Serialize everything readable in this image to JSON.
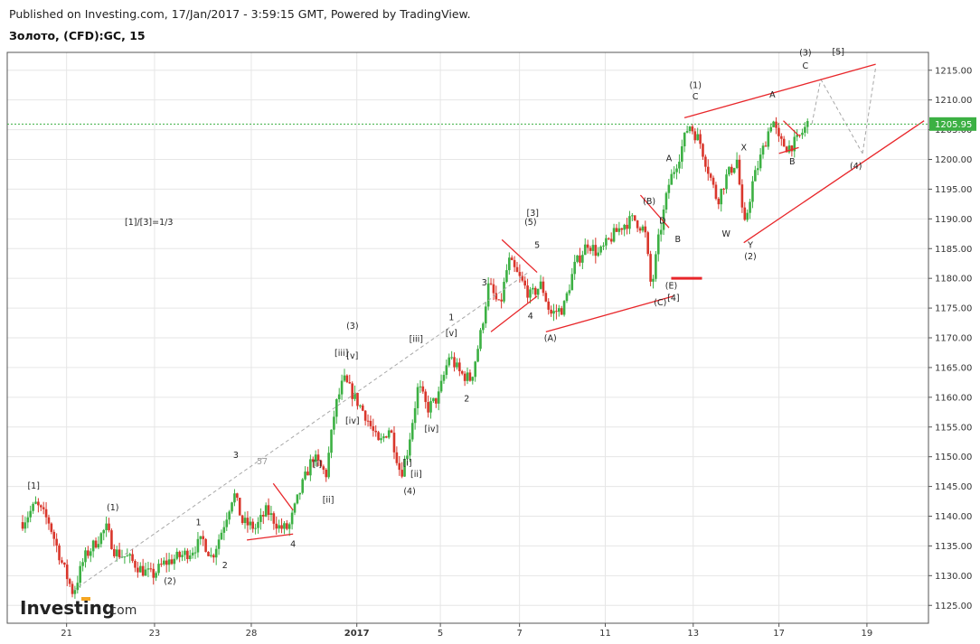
{
  "header": {
    "published": "Published on Investing.com, 17/Jan/2017 - 3:59:15 GMT, Powered by TradingView.",
    "symbol": "Золото, (CFD):GC, 15"
  },
  "logo": {
    "word": "Investing",
    "suffix": ".com"
  },
  "colors": {
    "up": "#3cb043",
    "down": "#d9362b",
    "trendline": "#e8262a",
    "grid": "#e6e6e6",
    "last_price_line": "#3cb043"
  },
  "ratio_label": "[1]/[3]=1/3",
  "fib_label": "57",
  "chart_data": {
    "type": "candlestick",
    "last_price": "1205.95",
    "ylim": [
      1122,
      1218
    ],
    "y_ticks": [
      "1215.00",
      "1210.00",
      "1205.00",
      "1200.00",
      "1195.00",
      "1190.00",
      "1185.00",
      "1180.00",
      "1175.00",
      "1170.00",
      "1165.00",
      "1160.00",
      "1155.00",
      "1150.00",
      "1145.00",
      "1140.00",
      "1135.00",
      "1130.00",
      "1125.00"
    ],
    "x_ticks": [
      {
        "label": "21",
        "pos": 1.0
      },
      {
        "label": "23",
        "pos": 3.0
      },
      {
        "label": "28",
        "pos": 5.2
      },
      {
        "label": "2017",
        "pos": 7.6
      },
      {
        "label": "5",
        "pos": 9.5
      },
      {
        "label": "7",
        "pos": 11.3
      },
      {
        "label": "11",
        "pos": 13.25
      },
      {
        "label": "13",
        "pos": 15.25
      },
      {
        "label": "17",
        "pos": 17.2
      },
      {
        "label": "19",
        "pos": 19.2
      }
    ],
    "xlim": [
      -0.35,
      20.6
    ],
    "price_path": [
      [
        0.0,
        1139
      ],
      [
        0.3,
        1142
      ],
      [
        0.6,
        1139
      ],
      [
        0.9,
        1132
      ],
      [
        1.15,
        1127
      ],
      [
        1.4,
        1133
      ],
      [
        1.7,
        1136
      ],
      [
        1.9,
        1138
      ],
      [
        2.1,
        1134
      ],
      [
        2.4,
        1133
      ],
      [
        2.7,
        1131
      ],
      [
        2.95,
        1130
      ],
      [
        3.2,
        1132
      ],
      [
        3.5,
        1133
      ],
      [
        3.8,
        1134
      ],
      [
        4.1,
        1136
      ],
      [
        4.3,
        1133
      ],
      [
        4.55,
        1138
      ],
      [
        4.8,
        1144
      ],
      [
        5.0,
        1139
      ],
      [
        5.3,
        1138
      ],
      [
        5.55,
        1141
      ],
      [
        5.85,
        1138
      ],
      [
        6.05,
        1138
      ],
      [
        6.3,
        1144
      ],
      [
        6.6,
        1150
      ],
      [
        6.9,
        1147
      ],
      [
        7.1,
        1158
      ],
      [
        7.3,
        1163
      ],
      [
        7.55,
        1160
      ],
      [
        7.8,
        1157
      ],
      [
        8.1,
        1152
      ],
      [
        8.35,
        1155
      ],
      [
        8.6,
        1147
      ],
      [
        8.75,
        1151
      ],
      [
        9.0,
        1162
      ],
      [
        9.2,
        1158
      ],
      [
        9.45,
        1160
      ],
      [
        9.7,
        1167
      ],
      [
        9.95,
        1164
      ],
      [
        10.2,
        1163
      ],
      [
        10.4,
        1170
      ],
      [
        10.6,
        1179
      ],
      [
        10.85,
        1175
      ],
      [
        11.05,
        1183
      ],
      [
        11.3,
        1180
      ],
      [
        11.55,
        1177
      ],
      [
        11.8,
        1179
      ],
      [
        12.0,
        1174
      ],
      [
        12.3,
        1175
      ],
      [
        12.55,
        1182
      ],
      [
        12.85,
        1186
      ],
      [
        13.1,
        1184
      ],
      [
        13.4,
        1187
      ],
      [
        13.65,
        1189
      ],
      [
        13.9,
        1190
      ],
      [
        14.15,
        1188
      ],
      [
        14.3,
        1178
      ],
      [
        14.45,
        1186
      ],
      [
        14.7,
        1196
      ],
      [
        14.95,
        1201
      ],
      [
        15.15,
        1206
      ],
      [
        15.4,
        1203
      ],
      [
        15.6,
        1198
      ],
      [
        15.8,
        1193
      ],
      [
        16.0,
        1197
      ],
      [
        16.25,
        1200
      ],
      [
        16.4,
        1188
      ],
      [
        16.6,
        1196
      ],
      [
        16.85,
        1202
      ],
      [
        17.05,
        1207
      ],
      [
        17.2,
        1203
      ],
      [
        17.4,
        1202
      ],
      [
        17.6,
        1203
      ],
      [
        17.85,
        1205.95
      ]
    ]
  },
  "annotations": [
    {
      "text": "[1]",
      "x": 0.25,
      "y": 1144.6
    },
    {
      "text": "(1)",
      "x": 2.05,
      "y": 1141
    },
    {
      "text": "(2)",
      "x": 3.35,
      "y": 1128.6
    },
    {
      "text": "1",
      "x": 4.0,
      "y": 1138.5
    },
    {
      "text": "2",
      "x": 4.6,
      "y": 1131.3
    },
    {
      "text": "3",
      "x": 4.85,
      "y": 1149.8
    },
    {
      "text": "4",
      "x": 6.15,
      "y": 1134.8
    },
    {
      "text": "[i]",
      "x": 6.7,
      "y": 1148.3
    },
    {
      "text": "[ii]",
      "x": 6.95,
      "y": 1142.3
    },
    {
      "text": "[iii]",
      "x": 7.25,
      "y": 1167
    },
    {
      "text": "(3)",
      "x": 7.5,
      "y": 1171.5
    },
    {
      "text": "[v]",
      "x": 7.5,
      "y": 1166.5
    },
    {
      "text": "[iv]",
      "x": 7.5,
      "y": 1155.6
    },
    {
      "text": "[i]",
      "x": 8.75,
      "y": 1148.5
    },
    {
      "text": "[ii]",
      "x": 8.95,
      "y": 1146.6
    },
    {
      "text": "(4)",
      "x": 8.8,
      "y": 1143.7
    },
    {
      "text": "[iii]",
      "x": 8.95,
      "y": 1169.3
    },
    {
      "text": "[iv]",
      "x": 9.3,
      "y": 1154.2
    },
    {
      "text": "1",
      "x": 9.75,
      "y": 1173
    },
    {
      "text": "[v]",
      "x": 9.75,
      "y": 1170.3
    },
    {
      "text": "2",
      "x": 10.1,
      "y": 1159.3
    },
    {
      "text": "3",
      "x": 10.5,
      "y": 1178.8
    },
    {
      "text": "[3]",
      "x": 11.6,
      "y": 1190.5
    },
    {
      "text": "(5)",
      "x": 11.55,
      "y": 1189
    },
    {
      "text": "5",
      "x": 11.7,
      "y": 1185.1
    },
    {
      "text": "4",
      "x": 11.55,
      "y": 1173.2
    },
    {
      "text": "(A)",
      "x": 12.0,
      "y": 1169.5
    },
    {
      "text": "(B)",
      "x": 14.25,
      "y": 1192.5
    },
    {
      "text": "D",
      "x": 14.55,
      "y": 1189.2
    },
    {
      "text": "A",
      "x": 14.7,
      "y": 1199.7
    },
    {
      "text": "B",
      "x": 14.9,
      "y": 1186.1
    },
    {
      "text": "(E)",
      "x": 14.75,
      "y": 1178.3
    },
    {
      "text": "[4]",
      "x": 14.8,
      "y": 1176.2
    },
    {
      "text": "(C)",
      "x": 14.5,
      "y": 1175.5
    },
    {
      "text": "(1)",
      "x": 15.3,
      "y": 1212
    },
    {
      "text": "C",
      "x": 15.3,
      "y": 1210.1
    },
    {
      "text": "W",
      "x": 16.0,
      "y": 1187
    },
    {
      "text": "X",
      "x": 16.4,
      "y": 1201.5
    },
    {
      "text": "Y",
      "x": 16.55,
      "y": 1185.1
    },
    {
      "text": "(2)",
      "x": 16.55,
      "y": 1183.2
    },
    {
      "text": "A",
      "x": 17.05,
      "y": 1210.4
    },
    {
      "text": "B",
      "x": 17.5,
      "y": 1199.2
    },
    {
      "text": "(3)",
      "x": 17.8,
      "y": 1217.5
    },
    {
      "text": "C",
      "x": 17.8,
      "y": 1215.3
    },
    {
      "text": "[5]",
      "x": 18.55,
      "y": 1217.6
    },
    {
      "text": "(4)",
      "x": 18.95,
      "y": 1198.4
    }
  ],
  "lines": [
    {
      "kind": "dashed",
      "x1": 1.15,
      "y1": 1127.5,
      "x2": 11.5,
      "y2": 1181
    },
    {
      "kind": "dashed",
      "x1": 17.95,
      "y1": 1206,
      "x2": 18.15,
      "y2": 1213.5
    },
    {
      "kind": "dashed",
      "x1": 18.15,
      "y1": 1213.5,
      "x2": 19.1,
      "y2": 1201
    },
    {
      "kind": "dashed",
      "x1": 19.1,
      "y1": 1201,
      "x2": 19.4,
      "y2": 1215.5
    },
    {
      "kind": "solid",
      "x1": 5.1,
      "y1": 1136,
      "x2": 6.15,
      "y2": 1137
    },
    {
      "kind": "solid",
      "x1": 5.7,
      "y1": 1145.5,
      "x2": 6.15,
      "y2": 1141
    },
    {
      "kind": "solid",
      "x1": 10.65,
      "y1": 1171,
      "x2": 11.7,
      "y2": 1177
    },
    {
      "kind": "solid",
      "x1": 10.9,
      "y1": 1186.5,
      "x2": 11.7,
      "y2": 1181
    },
    {
      "kind": "solid",
      "x1": 11.9,
      "y1": 1171,
      "x2": 14.8,
      "y2": 1177
    },
    {
      "kind": "solid",
      "x1": 14.05,
      "y1": 1194,
      "x2": 14.7,
      "y2": 1188.5
    },
    {
      "kind": "solid",
      "x1": 14.75,
      "y1": 1180,
      "x2": 15.45,
      "y2": 1180
    },
    {
      "kind": "solid",
      "x1": 15.05,
      "y1": 1207,
      "x2": 19.4,
      "y2": 1216
    },
    {
      "kind": "solid",
      "x1": 16.4,
      "y1": 1186,
      "x2": 20.5,
      "y2": 1206.5
    },
    {
      "kind": "solid",
      "x1": 17.2,
      "y1": 1201,
      "x2": 17.65,
      "y2": 1202
    },
    {
      "kind": "solid",
      "x1": 17.3,
      "y1": 1206.5,
      "x2": 17.65,
      "y2": 1204
    }
  ]
}
